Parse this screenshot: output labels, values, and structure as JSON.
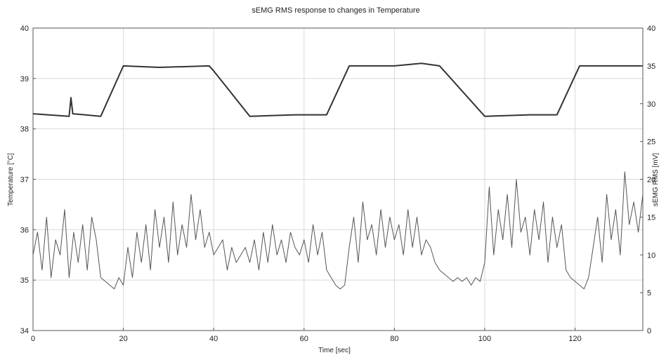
{
  "chart_data": {
    "type": "line",
    "title": "sEMG RMS response to changes in Temperature",
    "xlabel": "Time [sec]",
    "ylabel_left": "Temperature [°C]",
    "ylabel_right": "sEMG RMS [mV]",
    "xlim": [
      0,
      135
    ],
    "ylim_left": [
      34,
      40
    ],
    "ylim_right": [
      0,
      40
    ],
    "x_ticks": [
      "0",
      "20",
      "40",
      "60",
      "80",
      "100",
      "120"
    ],
    "y_ticks_left": [
      "34",
      "35",
      "36",
      "37",
      "38",
      "39",
      "40"
    ],
    "y_ticks_right": [
      "0",
      "5",
      "10",
      "15",
      "20",
      "25",
      "30",
      "35",
      "40"
    ],
    "grid": true,
    "series": [
      {
        "axis": "left",
        "color": "#333333",
        "x": [
          0,
          8,
          8.4,
          8.8,
          15,
          20,
          28,
          39,
          40,
          48,
          58,
          65,
          70,
          80,
          86,
          90,
          100,
          110,
          116,
          121,
          130,
          135
        ],
        "y": [
          38.3,
          38.25,
          38.62,
          38.3,
          38.25,
          39.25,
          39.22,
          39.25,
          39.15,
          38.25,
          38.28,
          38.28,
          39.25,
          39.25,
          39.3,
          39.25,
          38.25,
          38.28,
          38.28,
          39.25,
          39.25,
          39.25
        ]
      },
      {
        "axis": "right",
        "color": "#555555",
        "x": [
          0,
          1,
          2,
          3,
          4,
          5,
          6,
          7,
          8,
          9,
          10,
          11,
          12,
          13,
          14,
          15,
          16,
          17,
          18,
          19,
          20,
          21,
          22,
          23,
          24,
          25,
          26,
          27,
          28,
          29,
          30,
          31,
          32,
          33,
          34,
          35,
          36,
          37,
          38,
          39,
          40,
          41,
          42,
          43,
          44,
          45,
          46,
          47,
          48,
          49,
          50,
          51,
          52,
          53,
          54,
          55,
          56,
          57,
          58,
          59,
          60,
          61,
          62,
          63,
          64,
          65,
          66,
          67,
          68,
          69,
          70,
          71,
          72,
          73,
          74,
          75,
          76,
          77,
          78,
          79,
          80,
          81,
          82,
          83,
          84,
          85,
          86,
          87,
          88,
          89,
          90,
          91,
          92,
          93,
          94,
          95,
          96,
          97,
          98,
          99,
          100,
          101,
          102,
          103,
          104,
          105,
          106,
          107,
          108,
          109,
          110,
          111,
          112,
          113,
          114,
          115,
          116,
          117,
          118,
          119,
          120,
          121,
          122,
          123,
          124,
          125,
          126,
          127,
          128,
          129,
          130,
          131,
          132,
          133,
          134,
          135
        ],
        "y": [
          10,
          13,
          8,
          15,
          7,
          12,
          10,
          16,
          7,
          13,
          9,
          14,
          8,
          15,
          12,
          7,
          6.5,
          6,
          5.5,
          7,
          6,
          11,
          7,
          13,
          9,
          14,
          8,
          16,
          11,
          15,
          9,
          17,
          10,
          14,
          11,
          18,
          12,
          16,
          11,
          13,
          10,
          11,
          12,
          8,
          11,
          9,
          10,
          11,
          9,
          12,
          8,
          13,
          9,
          14,
          10,
          12,
          9,
          13,
          11,
          10,
          12,
          9,
          14,
          10,
          13,
          8,
          7,
          6,
          5.5,
          6,
          11,
          15,
          9,
          17,
          12,
          14,
          10,
          16,
          11,
          15,
          12,
          14,
          10,
          16,
          11,
          15,
          10,
          12,
          11,
          9,
          8,
          7.5,
          7,
          6.5,
          7,
          6.5,
          7,
          6,
          7,
          6.5,
          9,
          19,
          10,
          16,
          12,
          18,
          11,
          20,
          13,
          15,
          10,
          16,
          12,
          17,
          9,
          15,
          11,
          14,
          8,
          7,
          6.5,
          6,
          5.5,
          7,
          11,
          15,
          9,
          18,
          12,
          16,
          10,
          21,
          14,
          17,
          13,
          18
        ]
      }
    ]
  }
}
